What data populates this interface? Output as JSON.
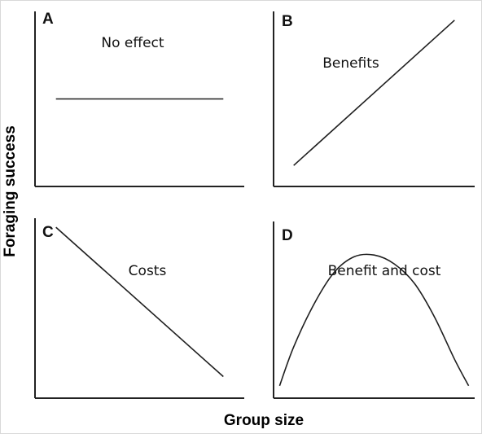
{
  "chart_data": [
    {
      "type": "line",
      "panel_letter": "A",
      "annotation": "No effect",
      "x": [
        0.1,
        0.9
      ],
      "y": [
        0.5,
        0.5
      ],
      "xlim": [
        0,
        1
      ],
      "ylim": [
        0,
        1
      ],
      "grid": false
    },
    {
      "type": "line",
      "panel_letter": "B",
      "annotation": "Benefits",
      "x": [
        0.1,
        0.9
      ],
      "y": [
        0.12,
        0.95
      ],
      "xlim": [
        0,
        1
      ],
      "ylim": [
        0,
        1
      ],
      "grid": false
    },
    {
      "type": "line",
      "panel_letter": "C",
      "annotation": "Costs",
      "x": [
        0.1,
        0.9
      ],
      "y": [
        0.95,
        0.12
      ],
      "xlim": [
        0,
        1
      ],
      "ylim": [
        0,
        1
      ],
      "grid": false
    },
    {
      "type": "line",
      "panel_letter": "D",
      "annotation": "Benefit and cost",
      "x": [
        0.03,
        0.1,
        0.2,
        0.3,
        0.4,
        0.5,
        0.6,
        0.7,
        0.8,
        0.9,
        0.97
      ],
      "y": [
        0.07,
        0.29,
        0.53,
        0.71,
        0.8,
        0.81,
        0.76,
        0.65,
        0.46,
        0.22,
        0.07
      ],
      "xlim": [
        0,
        1
      ],
      "ylim": [
        0,
        1
      ],
      "grid": false
    }
  ],
  "axes": {
    "shared_xlabel": "Group size",
    "shared_ylabel": "Foraging success"
  },
  "colors": {
    "line": "#1f1f1f",
    "axis": "#222222",
    "text": "#111111"
  }
}
